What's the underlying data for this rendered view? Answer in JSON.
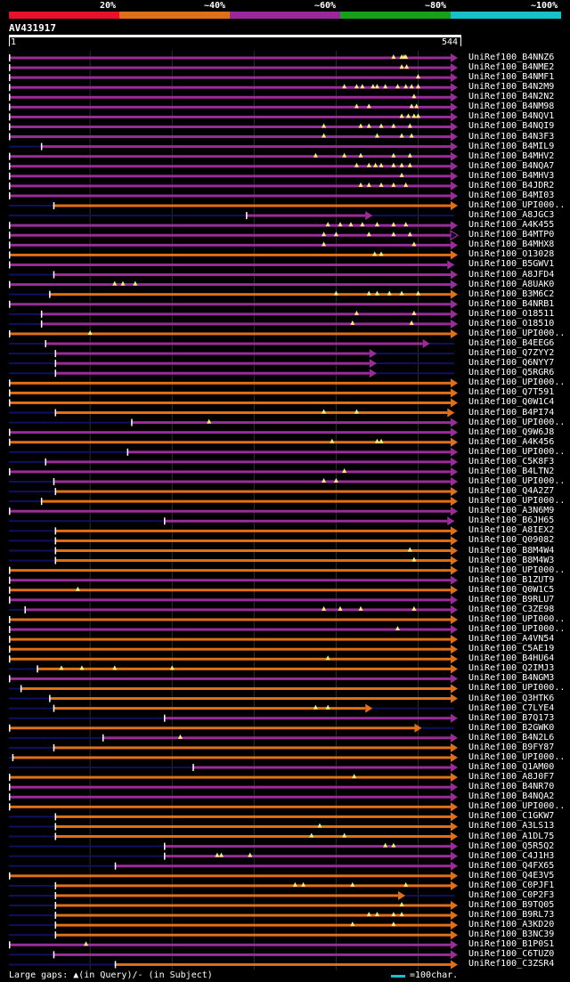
{
  "legend": {
    "labels": [
      "20%",
      "~40%",
      "~60%",
      "~80%",
      "~100%"
    ],
    "colors": [
      "#e8102a",
      "#e07018",
      "#9a289a",
      "#18a018",
      "#18c0c8"
    ]
  },
  "query": {
    "name": "AV431917",
    "start": "1",
    "end": "544",
    "length": 544
  },
  "colors": {
    "purple": "#9a2c9a",
    "orange": "#e07018",
    "navy": "#101060",
    "grid": "#2c2c2c",
    "gap": "#f2f27a"
  },
  "hits": [
    {
      "label": "UniRef100_B4NNZ6",
      "color": "purple",
      "start": 1,
      "end": 544,
      "arrow": "fill",
      "gaps": [
        470,
        480,
        483,
        485
      ]
    },
    {
      "label": "UniRef100_B4NME2",
      "color": "purple",
      "start": 1,
      "end": 544,
      "arrow": "fill",
      "gaps": [
        480,
        486
      ]
    },
    {
      "label": "UniRef100_B4NMF1",
      "color": "purple",
      "start": 1,
      "end": 544,
      "arrow": "fill",
      "gaps": [
        500
      ]
    },
    {
      "label": "UniRef100_B4N2M9",
      "color": "purple",
      "start": 1,
      "end": 544,
      "arrow": "fill",
      "gaps": [
        410,
        425,
        432,
        445,
        450,
        460,
        475,
        485,
        492,
        500
      ]
    },
    {
      "label": "UniRef100_B4N2N2",
      "color": "purple",
      "start": 1,
      "end": 544,
      "arrow": "fill",
      "gaps": [
        495
      ]
    },
    {
      "label": "UniRef100_B4NM98",
      "color": "purple",
      "start": 1,
      "end": 544,
      "arrow": "fill",
      "gaps": [
        425,
        440,
        492,
        498
      ]
    },
    {
      "label": "UniRef100_B4NQV1",
      "color": "purple",
      "start": 1,
      "end": 544,
      "arrow": "fill",
      "gaps": [
        480,
        488,
        495,
        500
      ]
    },
    {
      "label": "UniRef100_B4NQI9",
      "color": "purple",
      "start": 1,
      "end": 544,
      "arrow": "fill",
      "gaps": [
        385,
        430,
        440,
        455,
        470,
        490
      ]
    },
    {
      "label": "UniRef100_B4N3F3",
      "color": "purple",
      "start": 1,
      "end": 544,
      "arrow": "fill",
      "gaps": [
        385,
        450,
        480,
        492
      ]
    },
    {
      "label": "UniRef100_B4MIL9",
      "color": "purple",
      "start": 40,
      "end": 544,
      "arrow": "fill",
      "gaps": []
    },
    {
      "label": "UniRef100_B4MHV2",
      "color": "purple",
      "start": 1,
      "end": 544,
      "arrow": "fill",
      "gaps": [
        375,
        410,
        430,
        470,
        490
      ]
    },
    {
      "label": "UniRef100_B4NQA7",
      "color": "purple",
      "start": 1,
      "end": 544,
      "arrow": "fill",
      "gaps": [
        425,
        440,
        448,
        455,
        470,
        480,
        490
      ]
    },
    {
      "label": "UniRef100_B4MHV3",
      "color": "purple",
      "start": 1,
      "end": 544,
      "arrow": "fill",
      "gaps": [
        480
      ]
    },
    {
      "label": "UniRef100_B4JDR2",
      "color": "purple",
      "start": 1,
      "end": 544,
      "arrow": "fill",
      "gaps": [
        430,
        440,
        455,
        470,
        485
      ]
    },
    {
      "label": "UniRef100_B4MI03",
      "color": "purple",
      "start": 1,
      "end": 544,
      "arrow": "fill",
      "gaps": []
    },
    {
      "label": "UniRef100_UPI000..",
      "color": "orange",
      "start": 55,
      "end": 544,
      "arrow": "fill",
      "gaps": []
    },
    {
      "label": "UniRef100_A8JGC3",
      "color": "purple",
      "start": 290,
      "end": 440,
      "arrow": "fill",
      "gaps": []
    },
    {
      "label": "UniRef100_A4K455",
      "color": "purple",
      "start": 1,
      "end": 544,
      "arrow": "fill",
      "gaps": [
        390,
        405,
        418,
        432,
        450,
        470,
        485
      ]
    },
    {
      "label": "UniRef100_B4MTP0",
      "color": "purple",
      "start": 1,
      "end": 544,
      "arrow": "open",
      "gaps": [
        385,
        400,
        440,
        470,
        490
      ]
    },
    {
      "label": "UniRef100_B4MHX8",
      "color": "purple",
      "start": 1,
      "end": 544,
      "arrow": "fill",
      "gaps": [
        385,
        495
      ]
    },
    {
      "label": "UniRef100_O13028",
      "color": "orange",
      "start": 1,
      "end": 544,
      "arrow": "fill",
      "gaps": [
        447,
        455
      ]
    },
    {
      "label": "UniRef100_B5GWV1",
      "color": "purple",
      "start": 1,
      "end": 540,
      "arrow": "fill",
      "gaps": []
    },
    {
      "label": "UniRef100_A8JFD4",
      "color": "purple",
      "start": 55,
      "end": 544,
      "arrow": "fill",
      "gaps": []
    },
    {
      "label": "UniRef100_A8UAK0",
      "color": "purple",
      "start": 1,
      "end": 544,
      "arrow": "fill",
      "gaps": [
        130,
        140,
        155
      ]
    },
    {
      "label": "UniRef100_B3M6C2",
      "color": "orange",
      "start": 50,
      "end": 544,
      "arrow": "fill",
      "gaps": [
        400,
        440,
        450,
        465,
        480,
        500
      ]
    },
    {
      "label": "UniRef100_B4NRB1",
      "color": "purple",
      "start": 1,
      "end": 544,
      "arrow": "fill",
      "gaps": []
    },
    {
      "label": "UniRef100_O18511",
      "color": "purple",
      "start": 40,
      "end": 544,
      "arrow": "fill",
      "gaps": [
        425,
        495
      ]
    },
    {
      "label": "UniRef100_O18510",
      "color": "purple",
      "start": 40,
      "end": 544,
      "arrow": "fill",
      "gaps": [
        420,
        492
      ]
    },
    {
      "label": "UniRef100_UPI000..",
      "color": "orange",
      "start": 1,
      "end": 544,
      "arrow": "fill",
      "gaps": [
        100
      ]
    },
    {
      "label": "UniRef100_B4EEG6",
      "color": "purple",
      "start": 45,
      "end": 510,
      "arrow": "fill",
      "gaps": []
    },
    {
      "label": "UniRef100_Q7ZYY2",
      "color": "purple",
      "start": 57,
      "end": 445,
      "arrow": "fill",
      "gaps": []
    },
    {
      "label": "UniRef100_Q6NYY7",
      "color": "purple",
      "start": 57,
      "end": 445,
      "arrow": "fill",
      "gaps": []
    },
    {
      "label": "UniRef100_Q5RGR6",
      "color": "purple",
      "start": 57,
      "end": 445,
      "arrow": "fill",
      "gaps": []
    },
    {
      "label": "UniRef100_UPI000..",
      "color": "orange",
      "start": 1,
      "end": 544,
      "arrow": "fill",
      "gaps": []
    },
    {
      "label": "UniRef100_Q7T591",
      "color": "orange",
      "start": 1,
      "end": 544,
      "arrow": "fill",
      "gaps": []
    },
    {
      "label": "UniRef100_Q0W1C4",
      "color": "orange",
      "start": 1,
      "end": 544,
      "arrow": "fill",
      "gaps": []
    },
    {
      "label": "UniRef100_B4PI74",
      "color": "orange",
      "start": 57,
      "end": 540,
      "arrow": "fill",
      "gaps": [
        385,
        425
      ]
    },
    {
      "label": "UniRef100_UPI000..",
      "color": "purple",
      "start": 150,
      "end": 544,
      "arrow": "fill",
      "gaps": [
        245
      ]
    },
    {
      "label": "UniRef100_Q9W6J8",
      "color": "purple",
      "start": 1,
      "end": 544,
      "arrow": "fill",
      "gaps": []
    },
    {
      "label": "UniRef100_A4K456",
      "color": "orange",
      "start": 1,
      "end": 544,
      "arrow": "fill",
      "gaps": [
        395,
        450,
        455
      ]
    },
    {
      "label": "UniRef100_UPI000..",
      "color": "purple",
      "start": 145,
      "end": 544,
      "arrow": "fill",
      "gaps": []
    },
    {
      "label": "UniRef100_C5K8F3",
      "color": "purple",
      "start": 45,
      "end": 544,
      "arrow": "fill",
      "gaps": []
    },
    {
      "label": "UniRef100_B4LTN2",
      "color": "purple",
      "start": 1,
      "end": 544,
      "arrow": "fill",
      "gaps": [
        410
      ]
    },
    {
      "label": "UniRef100_UPI000..",
      "color": "purple",
      "start": 55,
      "end": 544,
      "arrow": "fill",
      "gaps": [
        385,
        400
      ]
    },
    {
      "label": "UniRef100_Q4A2Z7",
      "color": "orange",
      "start": 57,
      "end": 544,
      "arrow": "fill",
      "gaps": []
    },
    {
      "label": "UniRef100_UPI000..",
      "color": "orange",
      "start": 40,
      "end": 544,
      "arrow": "fill",
      "gaps": []
    },
    {
      "label": "UniRef100_A3N6M9",
      "color": "purple",
      "start": 1,
      "end": 544,
      "arrow": "fill",
      "gaps": []
    },
    {
      "label": "UniRef100_B6JH65",
      "color": "purple",
      "start": 190,
      "end": 540,
      "arrow": "fill",
      "gaps": []
    },
    {
      "label": "UniRef100_A8IEX2",
      "color": "orange",
      "start": 57,
      "end": 544,
      "arrow": "fill",
      "gaps": []
    },
    {
      "label": "UniRef100_Q09082",
      "color": "orange",
      "start": 57,
      "end": 544,
      "arrow": "fill",
      "gaps": []
    },
    {
      "label": "UniRef100_B8M4W4",
      "color": "orange",
      "start": 57,
      "end": 544,
      "arrow": "fill",
      "gaps": [
        490
      ]
    },
    {
      "label": "UniRef100_B8M4W3",
      "color": "orange",
      "start": 57,
      "end": 544,
      "arrow": "fill",
      "gaps": [
        495
      ]
    },
    {
      "label": "UniRef100_UPI000..",
      "color": "orange",
      "start": 1,
      "end": 544,
      "arrow": "fill",
      "gaps": []
    },
    {
      "label": "UniRef100_B1ZUT9",
      "color": "purple",
      "start": 1,
      "end": 544,
      "arrow": "fill",
      "gaps": []
    },
    {
      "label": "UniRef100_Q0W1C5",
      "color": "orange",
      "start": 1,
      "end": 544,
      "arrow": "fill",
      "gaps": [
        85
      ]
    },
    {
      "label": "UniRef100_B9RLU7",
      "color": "purple",
      "start": 1,
      "end": 544,
      "arrow": "fill",
      "gaps": []
    },
    {
      "label": "UniRef100_C3ZE98",
      "color": "purple",
      "start": 20,
      "end": 544,
      "arrow": "fill",
      "gaps": [
        385,
        405,
        430,
        495
      ]
    },
    {
      "label": "UniRef100_UPI000..",
      "color": "orange",
      "start": 1,
      "end": 544,
      "arrow": "fill",
      "gaps": []
    },
    {
      "label": "UniRef100_UPI000..",
      "color": "purple",
      "start": 1,
      "end": 544,
      "arrow": "fill",
      "gaps": [
        475
      ]
    },
    {
      "label": "UniRef100_A4VN54",
      "color": "orange",
      "start": 1,
      "end": 544,
      "arrow": "fill",
      "gaps": []
    },
    {
      "label": "UniRef100_C5AE19",
      "color": "orange",
      "start": 1,
      "end": 544,
      "arrow": "fill",
      "gaps": []
    },
    {
      "label": "UniRef100_B4HU64",
      "color": "orange",
      "start": 1,
      "end": 544,
      "arrow": "fill",
      "gaps": [
        390
      ]
    },
    {
      "label": "UniRef100_Q2IMJ3",
      "color": "orange",
      "start": 35,
      "end": 544,
      "arrow": "fill",
      "gaps": [
        65,
        90,
        130,
        200
      ]
    },
    {
      "label": "UniRef100_B4NGM3",
      "color": "purple",
      "start": 1,
      "end": 544,
      "arrow": "fill",
      "gaps": []
    },
    {
      "label": "UniRef100_UPI000..",
      "color": "orange",
      "start": 15,
      "end": 544,
      "arrow": "fill",
      "gaps": []
    },
    {
      "label": "UniRef100_Q3HTK6",
      "color": "orange",
      "start": 50,
      "end": 544,
      "arrow": "fill",
      "gaps": []
    },
    {
      "label": "UniRef100_C7LYE4",
      "color": "orange",
      "start": 55,
      "end": 440,
      "arrow": "fill",
      "gaps": [
        375,
        390
      ]
    },
    {
      "label": "UniRef100_B7Q173",
      "color": "purple",
      "start": 190,
      "end": 544,
      "arrow": "fill",
      "gaps": []
    },
    {
      "label": "UniRef100_B2GWK0",
      "color": "orange",
      "start": 1,
      "end": 500,
      "arrow": "fill",
      "gaps": []
    },
    {
      "label": "UniRef100_B4N2L6",
      "color": "purple",
      "start": 115,
      "end": 544,
      "arrow": "fill",
      "gaps": [
        210
      ]
    },
    {
      "label": "UniRef100_B9FY87",
      "color": "orange",
      "start": 55,
      "end": 544,
      "arrow": "fill",
      "gaps": []
    },
    {
      "label": "UniRef100_UPI000..",
      "color": "orange",
      "start": 5,
      "end": 544,
      "arrow": "fill",
      "gaps": []
    },
    {
      "label": "UniRef100_Q1AM00",
      "color": "purple",
      "start": 225,
      "end": 544,
      "arrow": "fill",
      "gaps": []
    },
    {
      "label": "UniRef100_A8J0F7",
      "color": "orange",
      "start": 1,
      "end": 544,
      "arrow": "fill",
      "gaps": [
        422
      ]
    },
    {
      "label": "UniRef100_B4NR70",
      "color": "purple",
      "start": 1,
      "end": 544,
      "arrow": "fill",
      "gaps": []
    },
    {
      "label": "UniRef100_B4NQA2",
      "color": "purple",
      "start": 1,
      "end": 544,
      "arrow": "fill",
      "gaps": []
    },
    {
      "label": "UniRef100_UPI000..",
      "color": "orange",
      "start": 1,
      "end": 544,
      "arrow": "fill",
      "gaps": []
    },
    {
      "label": "UniRef100_C1GKW7",
      "color": "orange",
      "start": 57,
      "end": 544,
      "arrow": "fill",
      "gaps": []
    },
    {
      "label": "UniRef100_A3LS13",
      "color": "orange",
      "start": 57,
      "end": 544,
      "arrow": "fill",
      "gaps": [
        380
      ]
    },
    {
      "label": "UniRef100_A1DL75",
      "color": "orange",
      "start": 57,
      "end": 544,
      "arrow": "fill",
      "gaps": [
        370,
        410
      ]
    },
    {
      "label": "UniRef100_Q5R5Q2",
      "color": "purple",
      "start": 190,
      "end": 544,
      "arrow": "fill",
      "gaps": [
        460,
        470
      ]
    },
    {
      "label": "UniRef100_C4J1H3",
      "color": "purple",
      "start": 190,
      "end": 544,
      "arrow": "fill",
      "gaps": [
        255,
        260,
        295
      ]
    },
    {
      "label": "UniRef100_Q4FX65",
      "color": "purple",
      "start": 130,
      "end": 544,
      "arrow": "fill",
      "gaps": []
    },
    {
      "label": "UniRef100_Q4E3V5",
      "color": "orange",
      "start": 1,
      "end": 544,
      "arrow": "fill",
      "gaps": []
    },
    {
      "label": "UniRef100_C0PJF1",
      "color": "orange",
      "start": 57,
      "end": 544,
      "arrow": "fill",
      "gaps": [
        350,
        360,
        420,
        485
      ]
    },
    {
      "label": "UniRef100_C0P2F3",
      "color": "orange",
      "start": 57,
      "end": 480,
      "arrow": "fill",
      "gaps": []
    },
    {
      "label": "UniRef100_B9TQ05",
      "color": "orange",
      "start": 57,
      "end": 544,
      "arrow": "fill",
      "gaps": [
        480
      ]
    },
    {
      "label": "UniRef100_B9RL73",
      "color": "orange",
      "start": 57,
      "end": 544,
      "arrow": "fill",
      "gaps": [
        440,
        450,
        470,
        480
      ]
    },
    {
      "label": "UniRef100_A3KD20",
      "color": "orange",
      "start": 57,
      "end": 544,
      "arrow": "fill",
      "gaps": [
        420,
        470
      ]
    },
    {
      "label": "UniRef100_B3NC39",
      "color": "orange",
      "start": 57,
      "end": 544,
      "arrow": "fill",
      "gaps": []
    },
    {
      "label": "UniRef100_B1P0S1",
      "color": "purple",
      "start": 1,
      "end": 544,
      "arrow": "fill",
      "gaps": [
        95
      ]
    },
    {
      "label": "UniRef100_C6TUZ0",
      "color": "purple",
      "start": 55,
      "end": 544,
      "arrow": "fill",
      "gaps": []
    },
    {
      "label": "UniRef100_C3ZSR4",
      "color": "orange",
      "start": 130,
      "end": 544,
      "arrow": "fill",
      "gaps": []
    }
  ],
  "footer": {
    "note": "Large gaps: ▲(in Query)/- (in Subject)",
    "scale": "=100char."
  }
}
